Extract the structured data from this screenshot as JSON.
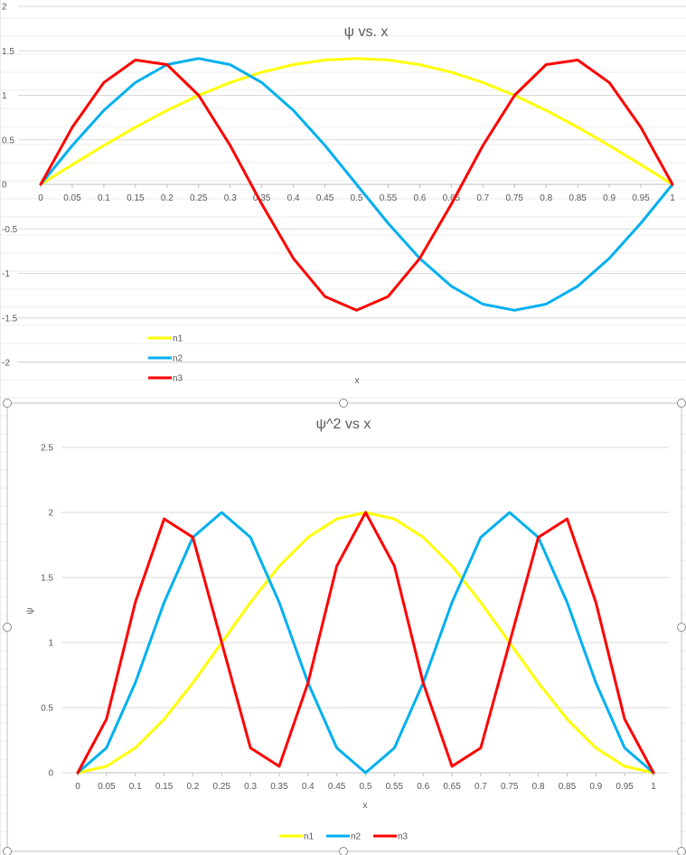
{
  "chart_data": [
    {
      "type": "line",
      "title": "ψ vs. x",
      "xlabel": "x",
      "ylabel": "",
      "ylim": [
        -2,
        2
      ],
      "yticks": [
        "2",
        "1.5",
        "1",
        "0.5",
        "0",
        "-0.5",
        "-1",
        "-1.5",
        "-2"
      ],
      "categories": [
        "0",
        "0.05",
        "0.1",
        "0.15",
        "0.2",
        "0.25",
        "0.3",
        "0.35",
        "0.4",
        "0.45",
        "0.5",
        "0.55",
        "0.6",
        "0.65",
        "0.7",
        "0.75",
        "0.8",
        "0.85",
        "0.9",
        "0.95",
        "1"
      ],
      "series": [
        {
          "name": "n1",
          "color": "#ffff00",
          "values": [
            0,
            0.221,
            0.437,
            0.642,
            0.831,
            1.0,
            1.144,
            1.26,
            1.345,
            1.397,
            1.414,
            1.397,
            1.345,
            1.26,
            1.144,
            1.0,
            0.831,
            0.642,
            0.437,
            0.221,
            0
          ]
        },
        {
          "name": "n2",
          "color": "#00b0f0",
          "values": [
            0,
            0.437,
            0.831,
            1.144,
            1.345,
            1.414,
            1.345,
            1.144,
            0.831,
            0.437,
            0,
            -0.437,
            -0.831,
            -1.144,
            -1.345,
            -1.414,
            -1.345,
            -1.144,
            -0.831,
            -0.437,
            0
          ]
        },
        {
          "name": "n3",
          "color": "#ff0000",
          "values": [
            0,
            0.642,
            1.144,
            1.397,
            1.345,
            1.0,
            0.437,
            -0.221,
            -0.831,
            -1.26,
            -1.414,
            -1.26,
            -0.831,
            -0.221,
            0.437,
            1.0,
            1.345,
            1.397,
            1.144,
            0.642,
            0
          ]
        }
      ],
      "grid": true,
      "legend": "bottom-left"
    },
    {
      "type": "line",
      "title": "ψ^2 vs x",
      "xlabel": "x",
      "ylabel": "ψ",
      "ylim": [
        0,
        2.5
      ],
      "yticks": [
        "2.5",
        "2",
        "1.5",
        "1",
        "0.5",
        "0"
      ],
      "categories": [
        "0",
        "0.05",
        "0.1",
        "0.15",
        "0.2",
        "0.25",
        "0.3",
        "0.35",
        "0.4",
        "0.45",
        "0.5",
        "0.55",
        "0.6",
        "0.65",
        "0.7",
        "0.75",
        "0.8",
        "0.85",
        "0.9",
        "0.95",
        "1"
      ],
      "series": [
        {
          "name": "n1",
          "color": "#ffff00",
          "values": [
            0,
            0.049,
            0.191,
            0.412,
            0.691,
            1.0,
            1.309,
            1.588,
            1.809,
            1.951,
            2.0,
            1.951,
            1.809,
            1.588,
            1.309,
            1.0,
            0.691,
            0.412,
            0.191,
            0.049,
            0
          ]
        },
        {
          "name": "n2",
          "color": "#00b0f0",
          "values": [
            0,
            0.191,
            0.691,
            1.309,
            1.809,
            2.0,
            1.809,
            1.309,
            0.691,
            0.191,
            0,
            0.191,
            0.691,
            1.309,
            1.809,
            2.0,
            1.809,
            1.309,
            0.691,
            0.191,
            0
          ]
        },
        {
          "name": "n3",
          "color": "#ff0000",
          "values": [
            0,
            0.412,
            1.309,
            1.951,
            1.809,
            1.0,
            0.191,
            0.049,
            0.691,
            1.588,
            2.0,
            1.588,
            0.691,
            0.049,
            0.191,
            1.0,
            1.809,
            1.951,
            1.309,
            0.412,
            0
          ]
        }
      ],
      "grid": true,
      "legend": "bottom"
    }
  ]
}
